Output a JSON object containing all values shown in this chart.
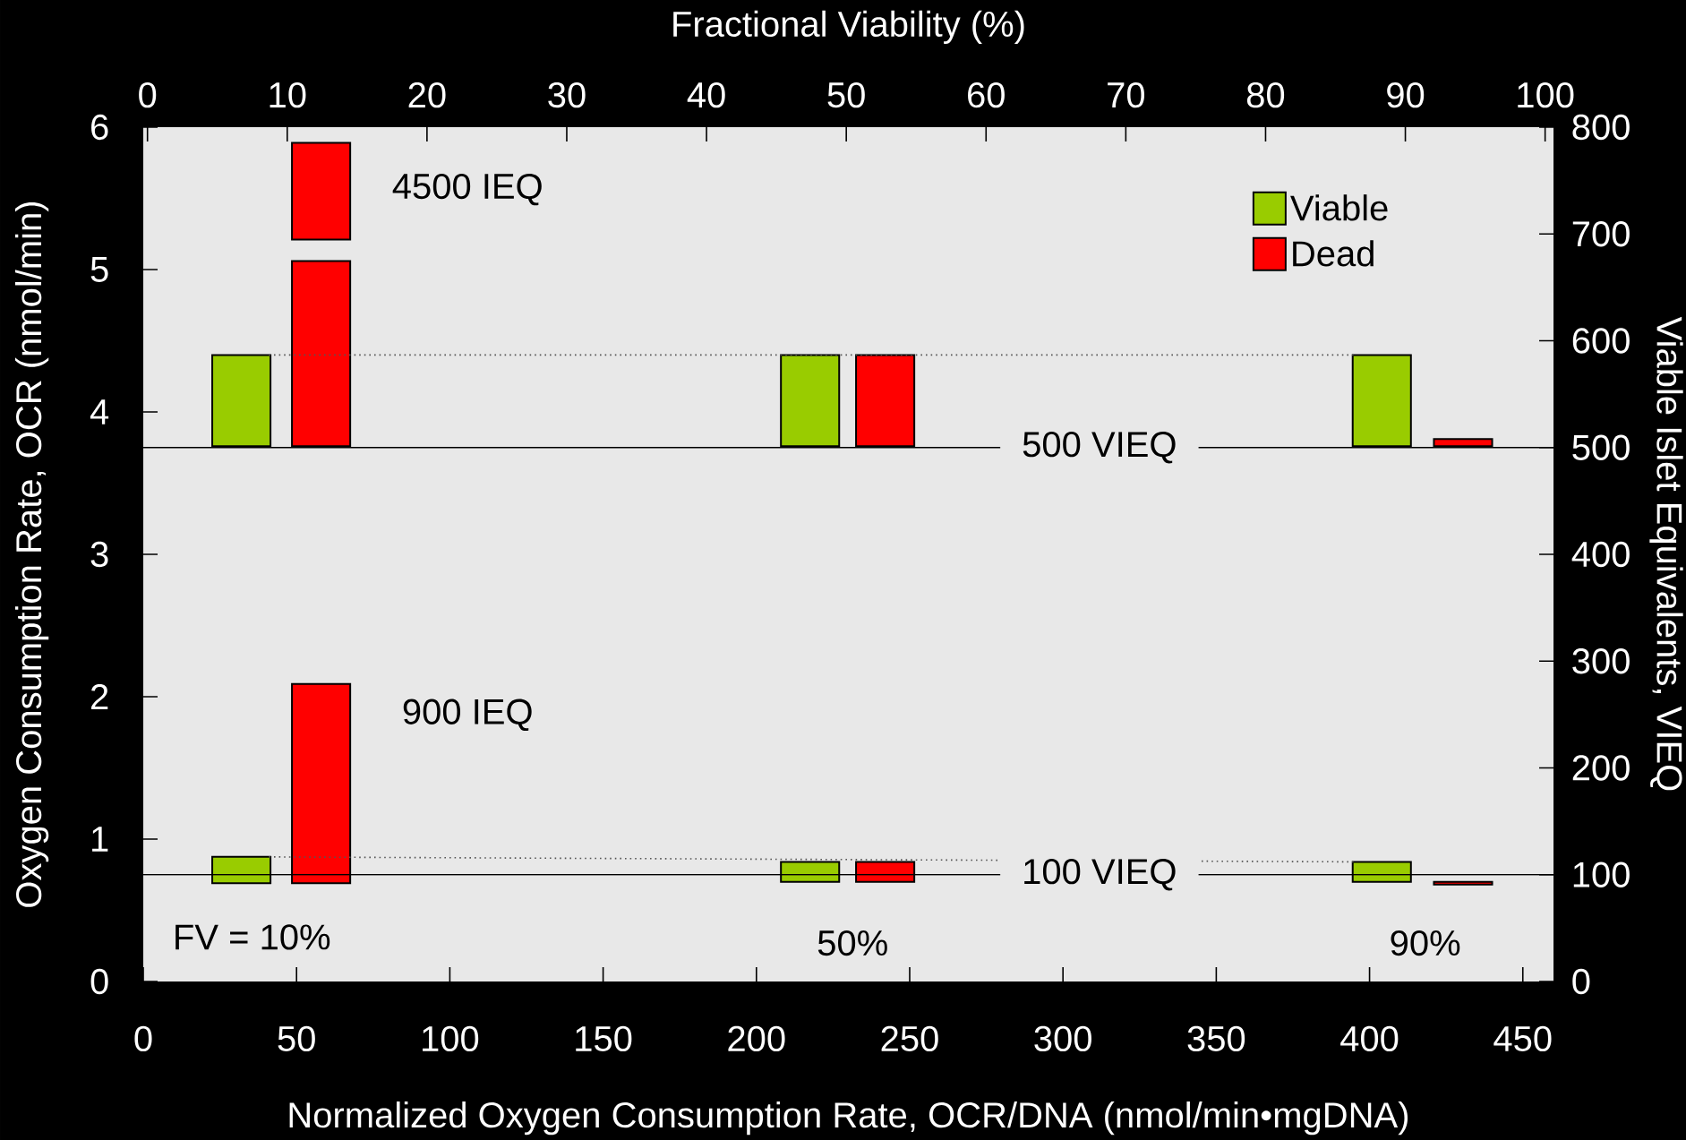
{
  "chart_data": {
    "type": "bar",
    "xlabel": "Normalized Oxygen Consumption Rate, OCR/DNA (nmol/min•mgDNA)",
    "ylabel": "Oxygen Consumption Rate, OCR (nmol/min)",
    "y2label": "Viable Islet Equivalents, VIEQ",
    "x2label": "Fractional Viability (%)",
    "xlim": [
      0,
      460
    ],
    "xticks": [
      0,
      50,
      100,
      150,
      200,
      250,
      300,
      350,
      400,
      450
    ],
    "ylim": [
      0,
      6
    ],
    "yticks": [
      0,
      1,
      2,
      3,
      4,
      5,
      6
    ],
    "x2lim": [
      -0.3,
      100.6
    ],
    "x2ticks": [
      0,
      10,
      20,
      30,
      40,
      50,
      60,
      70,
      80,
      90,
      100
    ],
    "y2lim": [
      0,
      800
    ],
    "y2ticks": [
      0,
      100,
      200,
      300,
      400,
      500,
      600,
      700,
      800
    ],
    "legend": "top right",
    "series": [
      {
        "name": "Viable",
        "color": "#99cc00",
        "x": [
          32,
          217.5,
          404
        ],
        "base": [
          3.76,
          3.76,
          3.76
        ],
        "values": [
          0.64,
          0.64,
          0.64
        ]
      },
      {
        "name": "Dead",
        "color": "#ff0000",
        "x": [
          58,
          242,
          430.5
        ],
        "base": [
          3.76,
          3.76,
          3.76
        ],
        "values": [
          1.3,
          0.64,
          0.05
        ]
      },
      {
        "color": "#ff0000",
        "x": [
          58
        ],
        "base": [
          5.21
        ],
        "values": [
          0.68
        ]
      },
      {
        "color": "#99cc00",
        "x": [
          32,
          217.5,
          404
        ],
        "base": [
          0.69,
          0.7,
          0.7
        ],
        "values": [
          0.185,
          0.14,
          0.14
        ]
      },
      {
        "color": "#ff0000",
        "x": [
          58,
          242,
          430.5
        ],
        "base": [
          0.69,
          0.7,
          0.68
        ],
        "values": [
          1.4,
          0.14,
          0.02
        ]
      },
      {
        "type": "line",
        "color": "#555555",
        "line_style": "dotted",
        "x": [
          41,
          395
        ],
        "values": [
          4.4,
          4.4
        ]
      },
      {
        "type": "line",
        "color": "#555555",
        "line_style": "dotted",
        "x": [
          41,
          395
        ],
        "values": [
          0.875,
          0.84
        ]
      }
    ],
    "ref_lines": [
      {
        "axis": "y2",
        "value": 500,
        "label": "500 VIEQ"
      },
      {
        "axis": "y2",
        "value": 100,
        "label": "100 VIEQ"
      }
    ],
    "annotations": [
      "4500 IEQ",
      "900 IEQ",
      "FV = 10%",
      "50%",
      "90%"
    ]
  }
}
